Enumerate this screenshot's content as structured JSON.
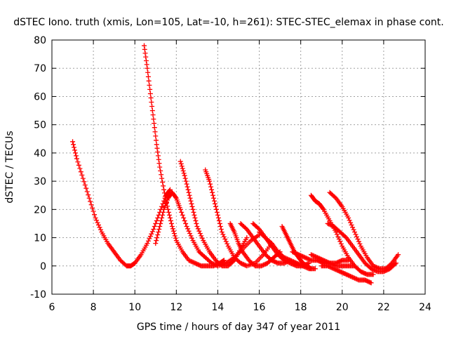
{
  "chart_data": {
    "type": "scatter",
    "title": "dSTEC Iono. truth (xmis, Lon=105, Lat=-10, h=261): STEC-STEC_elemax in phase cont.",
    "xlabel": "GPS time / hours of day 347 of year 2011",
    "ylabel": "dSTEC  / TECUs",
    "xlim": [
      6,
      24
    ],
    "ylim": [
      -10,
      80
    ],
    "xticks": [
      6,
      8,
      10,
      12,
      14,
      16,
      18,
      20,
      22,
      24
    ],
    "yticks": [
      -10,
      0,
      10,
      20,
      30,
      40,
      50,
      60,
      70,
      80
    ],
    "xtick_labels": [
      "6",
      "8",
      "10",
      "12",
      "14",
      "16",
      "18",
      "20",
      "22",
      "24"
    ],
    "ytick_labels": [
      "-10",
      "0",
      "10",
      "20",
      "30",
      "40",
      "50",
      "60",
      "70",
      "80"
    ],
    "grid": true,
    "marker": "+",
    "marker_color": "#ff0000",
    "series": [
      {
        "x": [
          7.0,
          7.2,
          7.5,
          7.8,
          8.1,
          8.4,
          8.7,
          9.0,
          9.3,
          9.6,
          9.8,
          10.0,
          10.3,
          10.6,
          10.9,
          11.2,
          11.5,
          11.7
        ],
        "y": [
          44,
          38,
          31,
          24,
          17,
          12,
          8,
          5,
          2,
          0,
          0,
          1,
          4,
          8,
          13,
          19,
          25,
          27
        ]
      },
      {
        "x": [
          10.45,
          10.6,
          10.75,
          10.9,
          11.05,
          11.2,
          11.4,
          11.6,
          11.8,
          12.0,
          12.3,
          12.6,
          12.9,
          13.2,
          13.5,
          13.8,
          14.1,
          14.3
        ],
        "y": [
          78,
          70,
          61,
          52,
          43,
          35,
          27,
          20,
          14,
          9,
          5,
          2,
          1,
          0,
          0,
          0,
          1,
          2
        ]
      },
      {
        "x": [
          11.0,
          11.2,
          11.4,
          11.6,
          11.8,
          12.0,
          12.2,
          12.5,
          12.8,
          13.1,
          13.4,
          13.7,
          14.0,
          14.4,
          14.8,
          15.2,
          15.6,
          16.0
        ],
        "y": [
          8,
          14,
          20,
          24,
          26,
          24,
          20,
          14,
          9,
          5,
          3,
          1,
          0,
          1,
          3,
          6,
          9,
          11
        ]
      },
      {
        "x": [
          12.2,
          12.4,
          12.6,
          12.8,
          13.0,
          13.3,
          13.6,
          13.9,
          14.2,
          14.5,
          14.8,
          15.1,
          15.4
        ],
        "y": [
          37,
          32,
          26,
          20,
          14,
          9,
          5,
          2,
          0,
          0,
          2,
          6,
          10
        ]
      },
      {
        "x": [
          13.4,
          13.6,
          13.8,
          14.0,
          14.2,
          14.5,
          14.8,
          15.1,
          15.4,
          15.8,
          16.2,
          16.6
        ],
        "y": [
          34,
          30,
          24,
          18,
          12,
          7,
          3,
          1,
          0,
          1,
          4,
          8
        ]
      },
      {
        "x": [
          14.6,
          14.8,
          15.0,
          15.2,
          15.5,
          15.8,
          16.1,
          16.4,
          16.7,
          17.0
        ],
        "y": [
          15,
          12,
          8,
          5,
          2,
          0,
          0,
          1,
          3,
          5
        ]
      },
      {
        "x": [
          15.1,
          15.4,
          15.7,
          16.0,
          16.3,
          16.6,
          16.9,
          17.2,
          17.5
        ],
        "y": [
          15,
          13,
          10,
          7,
          4,
          2,
          1,
          1,
          2
        ]
      },
      {
        "x": [
          15.7,
          16.0,
          16.3,
          16.6,
          16.9,
          17.2,
          17.5,
          17.8,
          18.1,
          18.4
        ],
        "y": [
          15,
          13,
          10,
          7,
          4,
          2,
          1,
          0,
          0,
          1
        ]
      },
      {
        "x": [
          16.0,
          16.3,
          16.6,
          16.9,
          17.2,
          17.5,
          17.8,
          18.1,
          18.4,
          18.7
        ],
        "y": [
          12,
          10,
          8,
          5,
          3,
          2,
          1,
          0,
          -1,
          -1
        ]
      },
      {
        "x": [
          17.1,
          17.3,
          17.5,
          17.7,
          17.9,
          18.1,
          18.3,
          18.5
        ],
        "y": [
          14,
          11,
          8,
          5,
          3,
          1,
          0,
          -1
        ]
      },
      {
        "x": [
          17.6,
          17.9,
          18.2,
          18.5,
          18.8,
          19.1,
          19.4,
          19.7,
          20.0,
          20.3
        ],
        "y": [
          5,
          4,
          3,
          2,
          2,
          1,
          1,
          1,
          2,
          2
        ]
      },
      {
        "x": [
          18.5,
          18.7,
          18.9,
          19.1,
          19.4,
          19.7,
          20.0,
          20.3,
          20.6,
          20.9,
          21.2,
          21.5
        ],
        "y": [
          25,
          23,
          22,
          20,
          16,
          12,
          7,
          3,
          0,
          -2,
          -3,
          -3
        ]
      },
      {
        "x": [
          18.5,
          18.8,
          19.1,
          19.4,
          19.7,
          20.0,
          20.3,
          20.6
        ],
        "y": [
          4,
          3,
          2,
          1,
          0,
          0,
          0,
          0
        ]
      },
      {
        "x": [
          19.0,
          19.3,
          19.6,
          19.9,
          20.2,
          20.5,
          20.8,
          21.1,
          21.4
        ],
        "y": [
          0,
          0,
          -1,
          -2,
          -3,
          -4,
          -5,
          -5,
          -6
        ]
      },
      {
        "x": [
          19.4,
          19.7,
          20.0,
          20.3,
          20.6,
          20.9,
          21.2,
          21.5,
          21.8,
          22.1,
          22.4,
          22.7
        ],
        "y": [
          26,
          24,
          21,
          17,
          12,
          7,
          3,
          0,
          -1,
          -1,
          1,
          4
        ]
      },
      {
        "x": [
          19.3,
          19.6,
          19.9,
          20.2,
          20.5,
          20.8,
          21.1,
          21.4,
          21.7,
          22.0,
          22.3,
          22.6
        ],
        "y": [
          15,
          14,
          12,
          10,
          7,
          4,
          1,
          -1,
          -2,
          -2,
          -1,
          1
        ]
      }
    ]
  }
}
